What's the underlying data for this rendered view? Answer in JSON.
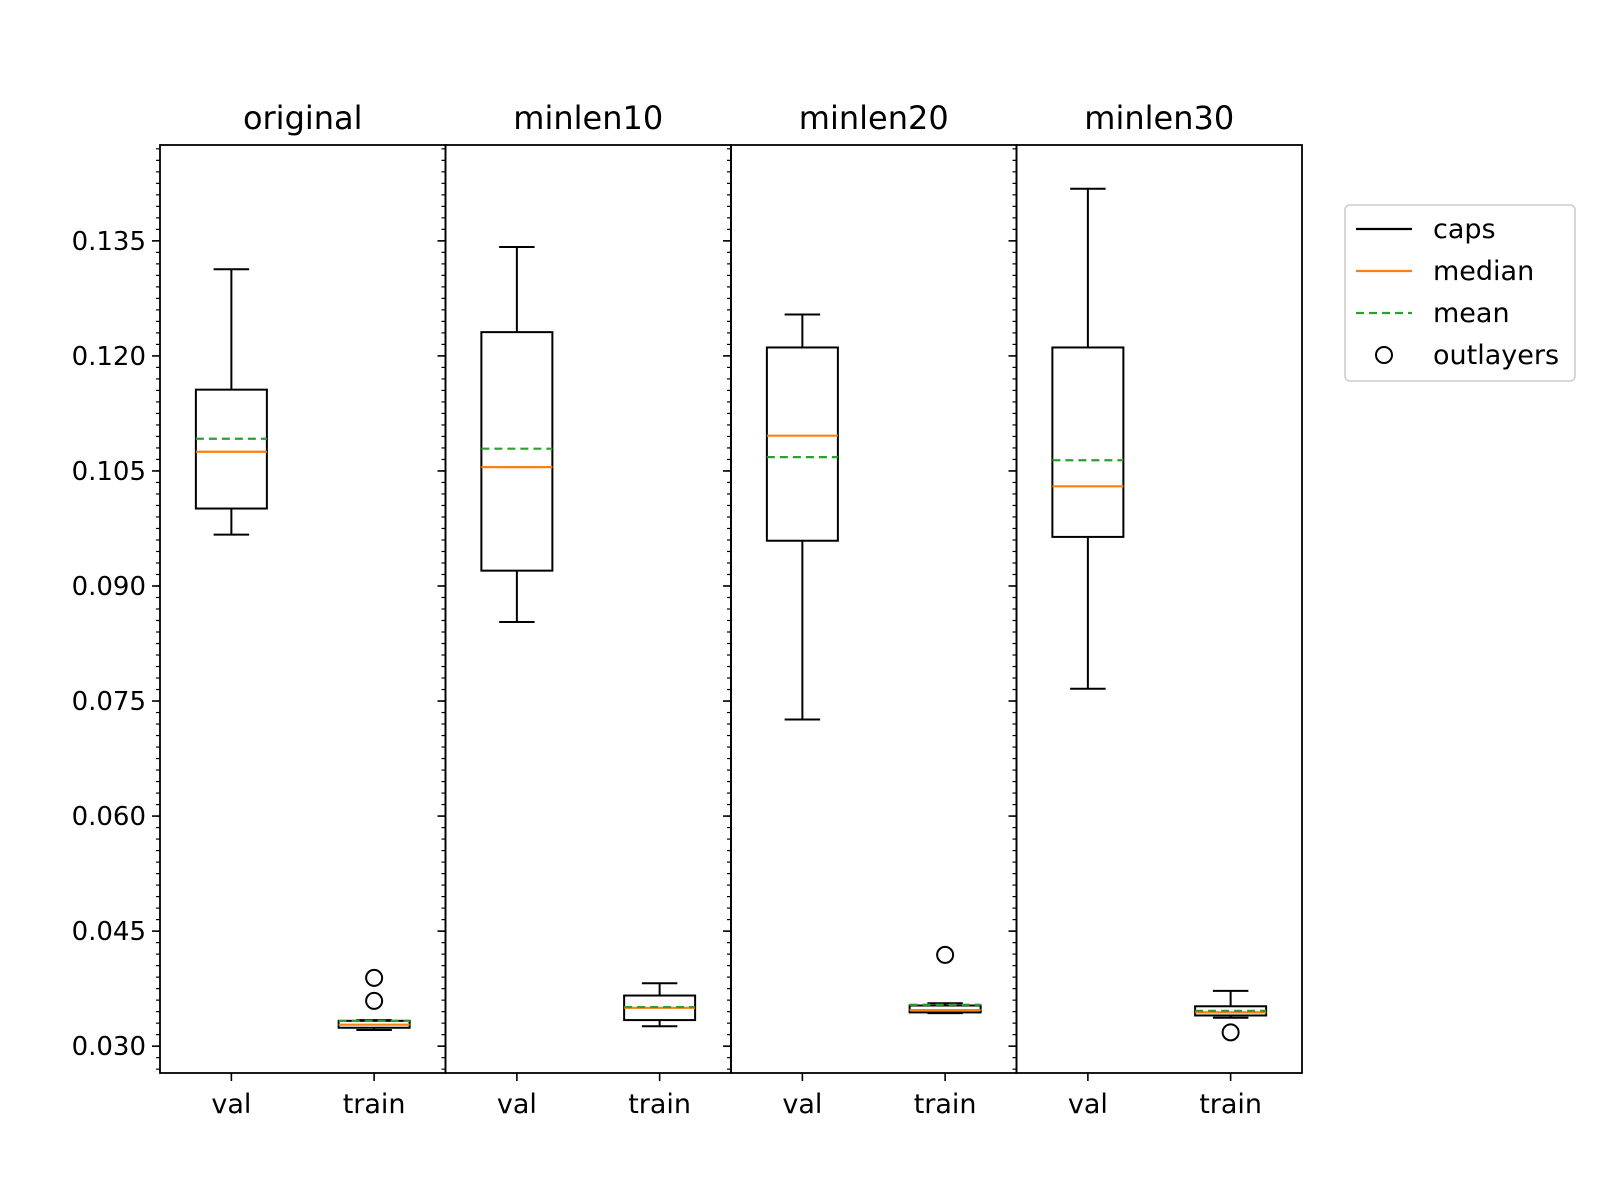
{
  "chart_data": {
    "type": "boxplot",
    "ylim": [
      0.0265,
      0.1475
    ],
    "yticks": [
      "0.030",
      "0.045",
      "0.060",
      "0.075",
      "0.090",
      "0.105",
      "0.120",
      "0.135"
    ],
    "categories": [
      "val",
      "train"
    ],
    "grid": false,
    "legend_placement": "outside-right-top",
    "panels": [
      {
        "title": "original",
        "boxes": [
          {
            "label": "val",
            "whislo": 0.0967,
            "q1": 0.1001,
            "med": 0.1075,
            "q3": 0.1156,
            "whishi": 0.1313,
            "mean": 0.1092,
            "fliers": []
          },
          {
            "label": "train",
            "whislo": 0.0321,
            "q1": 0.0324,
            "med": 0.0328,
            "q3": 0.0333,
            "whishi": 0.0334,
            "mean": 0.0333,
            "fliers": [
              0.0389,
              0.0359
            ]
          }
        ]
      },
      {
        "title": "minlen10",
        "boxes": [
          {
            "label": "val",
            "whislo": 0.0853,
            "q1": 0.092,
            "med": 0.1055,
            "q3": 0.1231,
            "whishi": 0.1342,
            "mean": 0.1079,
            "fliers": []
          },
          {
            "label": "train",
            "whislo": 0.0326,
            "q1": 0.0334,
            "med": 0.035,
            "q3": 0.0366,
            "whishi": 0.0382,
            "mean": 0.0351,
            "fliers": []
          }
        ]
      },
      {
        "title": "minlen20",
        "boxes": [
          {
            "label": "val",
            "whislo": 0.0726,
            "q1": 0.0959,
            "med": 0.1096,
            "q3": 0.1211,
            "whishi": 0.1254,
            "mean": 0.1068,
            "fliers": []
          },
          {
            "label": "train",
            "whislo": 0.0343,
            "q1": 0.0344,
            "med": 0.0347,
            "q3": 0.0353,
            "whishi": 0.0356,
            "mean": 0.0354,
            "fliers": [
              0.0419
            ]
          }
        ]
      },
      {
        "title": "minlen30",
        "boxes": [
          {
            "label": "val",
            "whislo": 0.0766,
            "q1": 0.0964,
            "med": 0.103,
            "q3": 0.1211,
            "whishi": 0.1418,
            "mean": 0.1064,
            "fliers": []
          },
          {
            "label": "train",
            "whislo": 0.0337,
            "q1": 0.034,
            "med": 0.0344,
            "q3": 0.0352,
            "whishi": 0.0372,
            "mean": 0.0346,
            "fliers": [
              0.0318
            ]
          }
        ]
      }
    ],
    "legend": [
      {
        "label": "caps",
        "kind": "line",
        "color": "#000000"
      },
      {
        "label": "median",
        "kind": "line",
        "color": "#ff7f0e"
      },
      {
        "label": "mean",
        "kind": "dashed",
        "color": "#2ca02c"
      },
      {
        "label": "outlayers",
        "kind": "marker",
        "color": "#000000"
      }
    ]
  }
}
